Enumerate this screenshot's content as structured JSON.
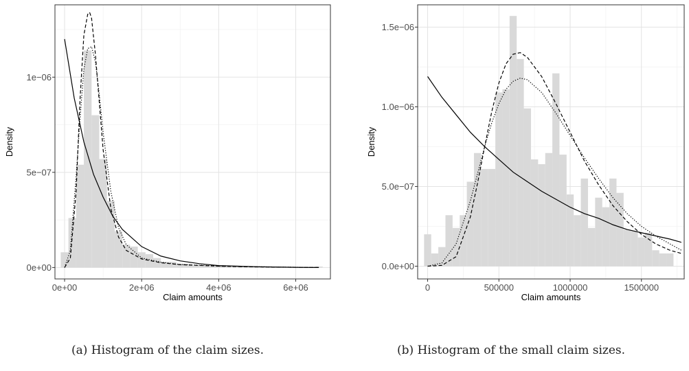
{
  "captions": {
    "a": "(a) Histogram of the claim sizes.",
    "b": "(b) Histogram of the small claim sizes."
  },
  "chart_data": [
    {
      "type": "bar",
      "subtype": "histogram",
      "xlabel": "Claim amounts",
      "ylabel": "Density",
      "xlim": [
        -250000,
        6900000
      ],
      "ylim": [
        -6e-08,
        1.38e-06
      ],
      "xticks": [
        0,
        2000000,
        4000000,
        6000000
      ],
      "xtick_labels": [
        "0e+00",
        "2e+06",
        "4e+06",
        "6e+06"
      ],
      "yticks": [
        0,
        5e-07,
        1e-06
      ],
      "ytick_labels": [
        "0e+00",
        "5e−07",
        "1e−06"
      ],
      "grid": true,
      "bin_width": 200000,
      "bins_start": -100000,
      "bar_color": "#d9d9d9",
      "values": [
        8e-08,
        2.6e-07,
        5.4e-07,
        1.14e-06,
        8e-07,
        5.7e-07,
        3.5e-07,
        1.9e-07,
        1.2e-07,
        1.1e-07,
        8e-08,
        7e-08,
        5e-08,
        3e-08,
        3e-08,
        2e-08,
        2e-08,
        1e-08,
        1e-08,
        1e-08,
        1e-08,
        5e-09,
        4e-09,
        3e-09,
        2e-09,
        2e-09,
        2e-09,
        2e-09,
        2e-09,
        2e-09,
        2e-09,
        2e-09,
        2e-09,
        5e-09
      ],
      "curves": [
        {
          "style": "solid",
          "x": [
            0,
            250000,
            500000,
            750000,
            1000000,
            1250000,
            1500000,
            2000000,
            2500000,
            3000000,
            3500000,
            4000000,
            5000000,
            6000000,
            6600000
          ],
          "y": [
            1.2e-06,
            8.9e-07,
            6.6e-07,
            4.9e-07,
            3.7e-07,
            2.7e-07,
            2e-07,
            1.1e-07,
            6e-08,
            3.5e-08,
            2e-08,
            1e-08,
            4e-09,
            1e-09,
            0
          ]
        },
        {
          "style": "dashed",
          "x": [
            0,
            150000,
            300000,
            400000,
            500000,
            600000,
            650000,
            700000,
            800000,
            900000,
            1000000,
            1200000,
            1400000,
            1600000,
            2000000,
            2500000,
            3000000,
            4000000,
            5000000,
            6600000
          ],
          "y": [
            0,
            5e-08,
            4e-07,
            8.8e-07,
            1.22e-06,
            1.33e-06,
            1.34e-06,
            1.31e-06,
            1.12e-06,
            8.7e-07,
            6.2e-07,
            3.1e-07,
            1.6e-07,
            9e-08,
            4.5e-08,
            2.5e-08,
            1.5e-08,
            7e-09,
            3e-09,
            0
          ]
        },
        {
          "style": "dotted",
          "x": [
            0,
            150000,
            300000,
            400000,
            500000,
            600000,
            700000,
            800000,
            900000,
            1000000,
            1200000,
            1400000,
            1600000,
            2000000,
            2500000,
            3000000,
            4000000,
            5000000,
            6600000
          ],
          "y": [
            0,
            9e-08,
            4.8e-07,
            7.8e-07,
            1.04e-06,
            1.15e-06,
            1.16e-06,
            1.08e-06,
            9.1e-07,
            7.1e-07,
            4e-07,
            2.1e-07,
            1.2e-07,
            5e-08,
            2.8e-08,
            1.6e-08,
            8e-09,
            4e-09,
            0
          ]
        }
      ]
    },
    {
      "type": "bar",
      "subtype": "histogram",
      "xlabel": "Claim amounts",
      "ylabel": "Density",
      "xlim": [
        -70000,
        1800000
      ],
      "ylim": [
        -8e-08,
        1.64e-06
      ],
      "xticks": [
        0,
        500000,
        1000000,
        1500000
      ],
      "xtick_labels": [
        "0",
        "500000",
        "1000000",
        "1500000"
      ],
      "yticks": [
        0,
        5e-07,
        1e-06,
        1.5e-06
      ],
      "ytick_labels": [
        "0.0e+00",
        "5.0e−07",
        "1.0e−06",
        "1.5e−06"
      ],
      "grid": true,
      "bin_width": 50000,
      "bins_start": -25000,
      "bar_color": "#d9d9d9",
      "values": [
        2e-07,
        8e-08,
        1.2e-07,
        3.2e-07,
        2.4e-07,
        3.2e-07,
        5.3e-07,
        7.1e-07,
        6.1e-07,
        6.1e-07,
        1.09e-06,
        1.11e-06,
        1.57e-06,
        1.3e-06,
        9.9e-07,
        6.7e-07,
        6.4e-07,
        7.1e-07,
        1.21e-06,
        7e-07,
        4.5e-07,
        3.2e-07,
        5.5e-07,
        2.4e-07,
        4.3e-07,
        3.7e-07,
        5.5e-07,
        4.6e-07,
        2.3e-07,
        2.2e-07,
        1.8e-07,
        2.1e-07,
        1e-07,
        8e-08,
        8e-08
      ],
      "curves": [
        {
          "style": "solid",
          "x": [
            0,
            100000,
            200000,
            300000,
            400000,
            500000,
            600000,
            700000,
            800000,
            900000,
            1000000,
            1100000,
            1200000,
            1300000,
            1400000,
            1500000,
            1600000,
            1700000,
            1780000
          ],
          "y": [
            1.19e-06,
            1.06e-06,
            9.5e-07,
            8.4e-07,
            7.5e-07,
            6.7e-07,
            5.9e-07,
            5.3e-07,
            4.7e-07,
            4.2e-07,
            3.7e-07,
            3.3e-07,
            3e-07,
            2.6e-07,
            2.3e-07,
            2.1e-07,
            1.9e-07,
            1.7e-07,
            1.5e-07
          ]
        },
        {
          "style": "dashed",
          "x": [
            0,
            100000,
            200000,
            300000,
            350000,
            400000,
            450000,
            500000,
            550000,
            600000,
            650000,
            700000,
            800000,
            900000,
            1000000,
            1100000,
            1200000,
            1300000,
            1400000,
            1500000,
            1600000,
            1700000,
            1780000
          ],
          "y": [
            0,
            5e-09,
            6e-08,
            3.1e-07,
            5.2e-07,
            7.5e-07,
            9.7e-07,
            1.15e-06,
            1.27e-06,
            1.33e-06,
            1.34e-06,
            1.31e-06,
            1.19e-06,
            1.02e-06,
            8.4e-07,
            6.6e-07,
            5.1e-07,
            3.8e-07,
            2.8e-07,
            2e-07,
            1.4e-07,
            1e-07,
            8e-08
          ]
        },
        {
          "style": "dotted",
          "x": [
            0,
            100000,
            200000,
            300000,
            350000,
            400000,
            450000,
            500000,
            550000,
            600000,
            650000,
            700000,
            800000,
            900000,
            1000000,
            1100000,
            1200000,
            1300000,
            1400000,
            1500000,
            1600000,
            1700000,
            1780000
          ],
          "y": [
            0,
            2e-08,
            1.4e-07,
            4.1e-07,
            5.8e-07,
            7.5e-07,
            9e-07,
            1.02e-06,
            1.11e-06,
            1.16e-06,
            1.18e-06,
            1.17e-06,
            1.09e-06,
            9.6e-07,
            8.2e-07,
            6.8e-07,
            5.5e-07,
            4.3e-07,
            3.3e-07,
            2.5e-07,
            1.9e-07,
            1.4e-07,
            1e-07
          ]
        }
      ]
    }
  ]
}
